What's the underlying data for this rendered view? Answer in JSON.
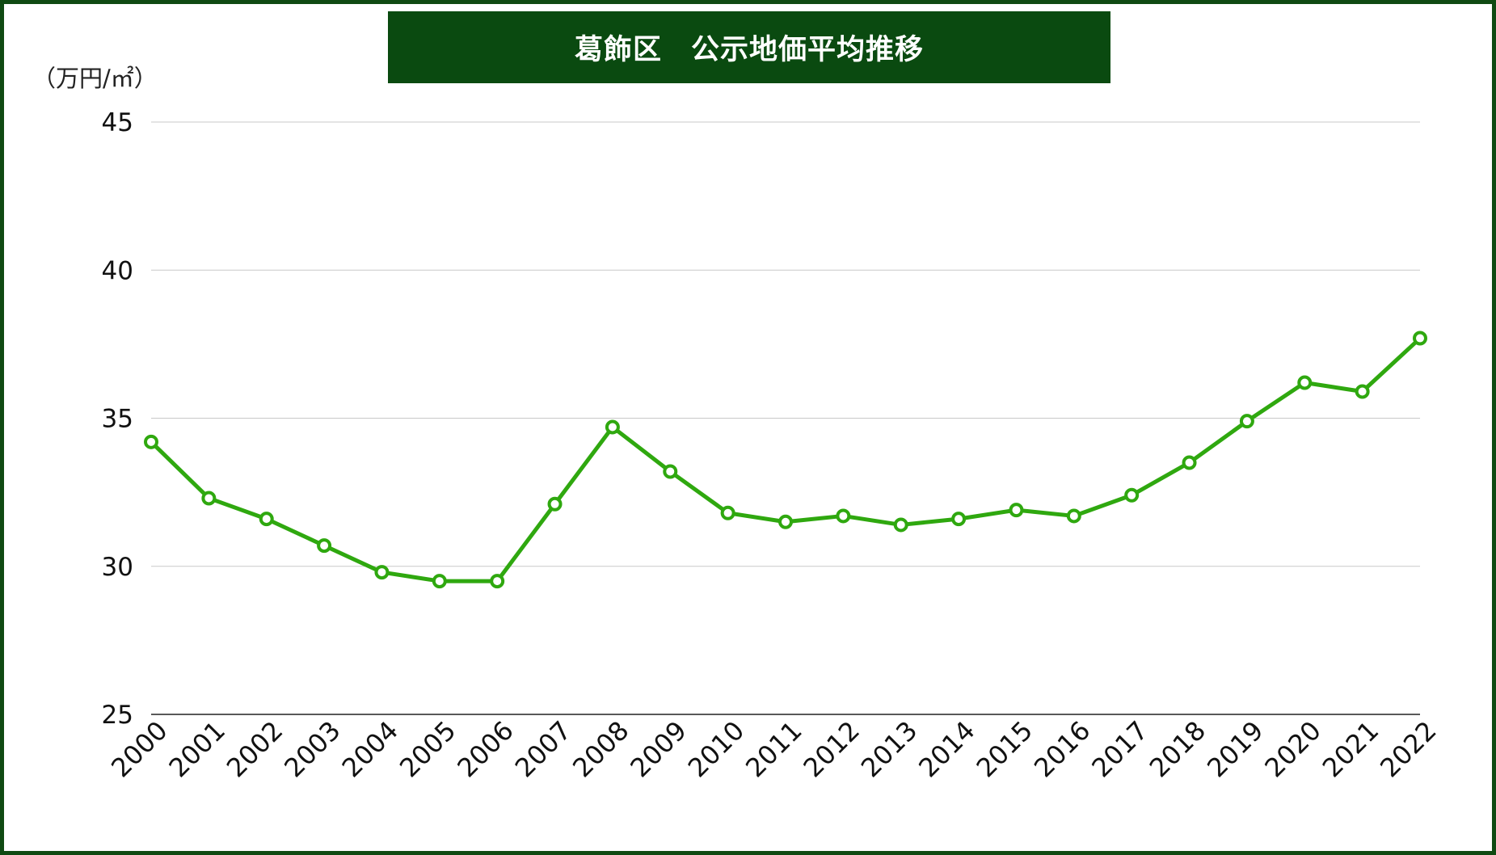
{
  "title": "葛飾区　公示地価平均推移",
  "unit": "（万円/㎡）",
  "colors": {
    "frame": "#0f4a12",
    "title_bg": "#0a4a10",
    "line": "#2fa80f",
    "gridline": "#c8c8c8"
  },
  "chart_data": {
    "type": "line",
    "title": "葛飾区　公示地価平均推移",
    "ylabel": "（万円/㎡）",
    "xlabel": "",
    "ylim": [
      25,
      45
    ],
    "yticks": [
      25,
      30,
      35,
      40,
      45
    ],
    "grid": true,
    "legend": "none",
    "categories": [
      "2000",
      "2001",
      "2002",
      "2003",
      "2004",
      "2005",
      "2006",
      "2007",
      "2008",
      "2009",
      "2010",
      "2011",
      "2012",
      "2013",
      "2014",
      "2015",
      "2016",
      "2017",
      "2018",
      "2019",
      "2020",
      "2021",
      "2022"
    ],
    "series": [
      {
        "values": [
          34.2,
          32.3,
          31.6,
          30.7,
          29.8,
          29.5,
          29.5,
          32.1,
          34.7,
          33.2,
          31.8,
          31.5,
          31.7,
          31.4,
          31.6,
          31.9,
          31.7,
          32.4,
          33.5,
          34.9,
          36.2,
          35.9,
          37.7
        ]
      }
    ]
  }
}
